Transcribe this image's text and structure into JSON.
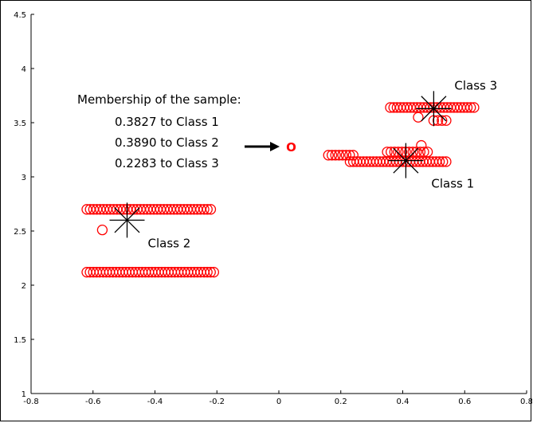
{
  "chart_data": {
    "type": "scatter",
    "xlim": [
      -0.8,
      0.8
    ],
    "ylim": [
      1,
      4.5
    ],
    "xticks": [
      -0.8,
      -0.6,
      -0.4,
      -0.2,
      0,
      0.2,
      0.4,
      0.6,
      0.8
    ],
    "yticks": [
      1,
      1.5,
      2,
      2.5,
      3,
      3.5,
      4,
      4.5
    ],
    "xtick_labels": [
      "-0.8",
      "-0.6",
      "-0.4",
      "-0.2",
      "0",
      "0.2",
      "0.4",
      "0.6",
      "0.8"
    ],
    "ytick_labels": [
      "1",
      "1.5",
      "2",
      "2.5",
      "3",
      "3.5",
      "4",
      "4.5"
    ],
    "grid": false,
    "marker_color": "#ff0000",
    "point_runs": [
      {
        "y": 2.7,
        "x_from": -0.62,
        "x_to": -0.22,
        "count": 38
      },
      {
        "y": 2.12,
        "x_from": -0.62,
        "x_to": -0.21,
        "count": 40
      },
      {
        "y": 3.64,
        "x_from": 0.36,
        "x_to": 0.63,
        "count": 26
      },
      {
        "y": 3.2,
        "x_from": 0.16,
        "x_to": 0.24,
        "count": 8
      },
      {
        "y": 3.14,
        "x_from": 0.23,
        "x_to": 0.54,
        "count": 30
      },
      {
        "y": 3.23,
        "x_from": 0.35,
        "x_to": 0.48,
        "count": 12
      },
      {
        "y": 3.52,
        "x_from": 0.5,
        "x_to": 0.54,
        "count": 4
      }
    ],
    "extra_points": [
      {
        "x": -0.57,
        "y": 2.51
      },
      {
        "x": 0.46,
        "y": 3.29
      },
      {
        "x": 0.45,
        "y": 3.55
      }
    ],
    "centroids": [
      {
        "label": "Class 1",
        "x": 0.41,
        "y": 3.15
      },
      {
        "label": "Class 2",
        "x": -0.49,
        "y": 2.6
      },
      {
        "label": "Class 3",
        "x": 0.5,
        "y": 3.63
      }
    ],
    "sample": {
      "x": 0.04,
      "y": 3.28,
      "marker": "O"
    },
    "annotation_lines": [
      "Membership of the sample:",
      "0.3827 to Class 1",
      "0.3890 to Class 2",
      "0.2283 to Class 3"
    ]
  }
}
